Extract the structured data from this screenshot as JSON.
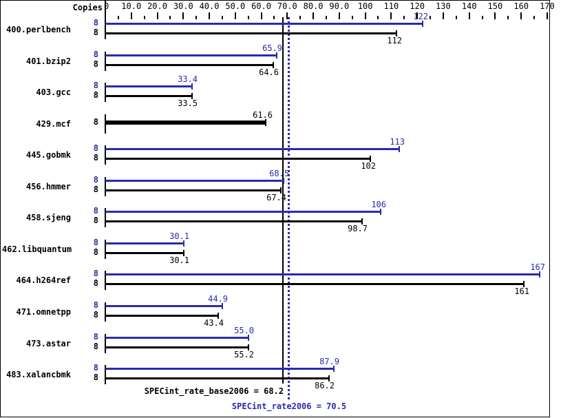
{
  "colors": {
    "peak_blue": "#2a2aad",
    "base_black": "#000000",
    "background": "#ffffff",
    "border": "#000000"
  },
  "chart_data": {
    "type": "bar",
    "orientation": "horizontal",
    "copies_header": "Copies",
    "axis": {
      "min": 0,
      "max": 170,
      "major_step": 10,
      "minor_step": 5,
      "tick_labels": [
        "0",
        "10.0",
        "20.0",
        "30.0",
        "40.0",
        "50.0",
        "60.0",
        "70.0",
        "80.0",
        "90.0",
        "100",
        "110",
        "120",
        "130",
        "140",
        "150",
        "160",
        "170"
      ]
    },
    "series_meta": {
      "peak": {
        "name": "SPECint_rate2006 (peak)",
        "color": "#2a2aad"
      },
      "base": {
        "name": "SPECint_rate_base2006",
        "color": "#000000"
      }
    },
    "benchmarks": [
      {
        "name": "400.perlbench",
        "copies": 8,
        "peak": 122,
        "peak_label": "122",
        "base": 112,
        "base_label": "112",
        "merged": false
      },
      {
        "name": "401.bzip2",
        "copies": 8,
        "peak": 65.9,
        "peak_label": "65.9",
        "base": 64.6,
        "base_label": "64.6",
        "merged": false
      },
      {
        "name": "403.gcc",
        "copies": 8,
        "peak": 33.4,
        "peak_label": "33.4",
        "base": 33.5,
        "base_label": "33.5",
        "merged": false
      },
      {
        "name": "429.mcf",
        "copies": 8,
        "peak": 61.6,
        "peak_label": "61.6",
        "base": 61.6,
        "base_label": "61.6",
        "merged": true
      },
      {
        "name": "445.gobmk",
        "copies": 8,
        "peak": 113,
        "peak_label": "113",
        "base": 102,
        "base_label": "102",
        "merged": false
      },
      {
        "name": "456.hmmer",
        "copies": 8,
        "peak": 68.5,
        "peak_label": "68.5",
        "base": 67.4,
        "base_label": "67.4",
        "merged": false
      },
      {
        "name": "458.sjeng",
        "copies": 8,
        "peak": 106,
        "peak_label": "106",
        "base": 98.7,
        "base_label": "98.7",
        "merged": false
      },
      {
        "name": "462.libquantum",
        "copies": 8,
        "peak": 30.1,
        "peak_label": "30.1",
        "base": 30.1,
        "base_label": "30.1",
        "merged": false
      },
      {
        "name": "464.h264ref",
        "copies": 8,
        "peak": 167,
        "peak_label": "167",
        "base": 161,
        "base_label": "161",
        "merged": false
      },
      {
        "name": "471.omnetpp",
        "copies": 8,
        "peak": 44.9,
        "peak_label": "44.9",
        "base": 43.4,
        "base_label": "43.4",
        "merged": false
      },
      {
        "name": "473.astar",
        "copies": 8,
        "peak": 55.0,
        "peak_label": "55.0",
        "base": 55.2,
        "base_label": "55.2",
        "merged": false
      },
      {
        "name": "483.xalancbmk",
        "copies": 8,
        "peak": 87.9,
        "peak_label": "87.9",
        "base": 86.2,
        "base_label": "86.2",
        "merged": false
      }
    ],
    "summary": {
      "base_text": "SPECint_rate_base2006 = 68.2",
      "base_value": 68.2,
      "peak_text": "SPECint_rate2006 = 70.5",
      "peak_value": 70.5
    }
  }
}
